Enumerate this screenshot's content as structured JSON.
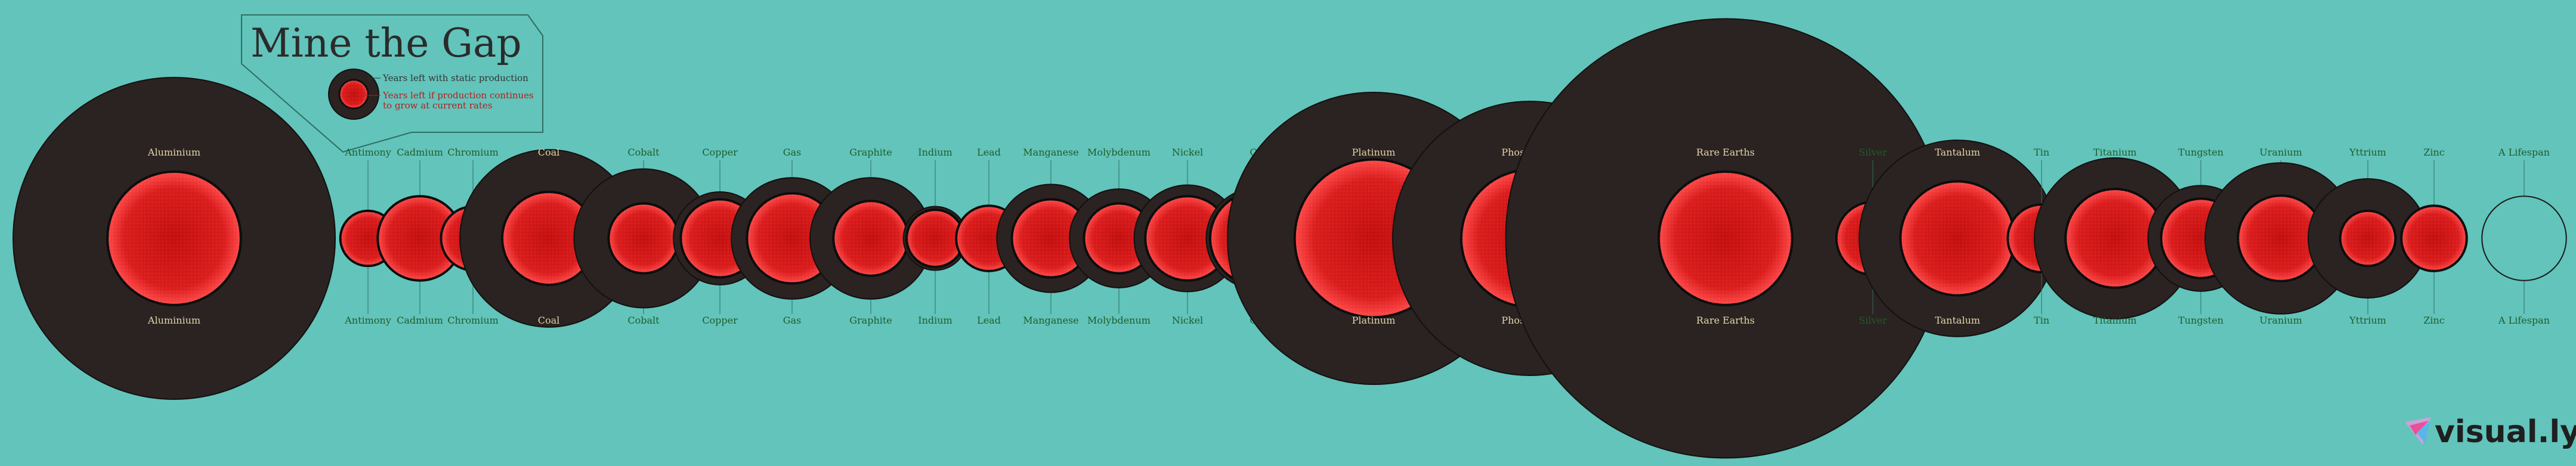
{
  "title": "Mine the Gap",
  "legend": {
    "static_label": "Years left with static production",
    "growth_label_line1": "Years left if production continues",
    "growth_label_line2": "to grow at current rates"
  },
  "brand": "visual.ly",
  "colors": {
    "background": "#62c4bb",
    "static_circle": "#2a2321",
    "growth_circle": "#d41a1a",
    "label": "#1f5d28",
    "label_on_dark": "#e3d5a9"
  },
  "chart_data": {
    "type": "bubble",
    "unit": "years",
    "scale_note": "values estimated from relative circle sizes; A Lifespan reference = 70",
    "items": [
      {
        "name": "Aluminium",
        "static": 1020,
        "growth": 175
      },
      {
        "name": "Antimony",
        "static": 30,
        "growth": 30
      },
      {
        "name": "Cadmium",
        "static": 70,
        "growth": 70
      },
      {
        "name": "Chromium",
        "static": 40,
        "growth": 40
      },
      {
        "name": "Coal",
        "static": 310,
        "growth": 85
      },
      {
        "name": "Cobalt",
        "static": 190,
        "growth": 48
      },
      {
        "name": "Copper",
        "static": 85,
        "growth": 60
      },
      {
        "name": "Gas",
        "static": 145,
        "growth": 80
      },
      {
        "name": "Graphite",
        "static": 145,
        "growth": 55
      },
      {
        "name": "Indium",
        "static": 40,
        "growth": 32
      },
      {
        "name": "Lead",
        "static": 42,
        "growth": 42
      },
      {
        "name": "Manganese",
        "static": 115,
        "growth": 60
      },
      {
        "name": "Molybdenum",
        "static": 96,
        "growth": 48
      },
      {
        "name": "Nickel",
        "static": 112,
        "growth": 70
      },
      {
        "name": "Oil",
        "static": 100,
        "growth": 85
      },
      {
        "name": "Platinum",
        "static": 840,
        "growth": 245
      },
      {
        "name": "Phosphorus",
        "static": 740,
        "growth": 185
      },
      {
        "name": "Rare Earths",
        "static": 1900,
        "growth": 175
      },
      {
        "name": "Silver",
        "static": 52,
        "growth": 52
      },
      {
        "name": "Tantalum",
        "static": 380,
        "growth": 128
      },
      {
        "name": "Tin",
        "static": 45,
        "growth": 45
      },
      {
        "name": "Titanium",
        "static": 255,
        "growth": 96
      },
      {
        "name": "Tungsten",
        "static": 110,
        "growth": 62
      },
      {
        "name": "Uranium",
        "static": 225,
        "growth": 72
      },
      {
        "name": "Yttrium",
        "static": 140,
        "growth": 30
      },
      {
        "name": "Zinc",
        "static": 42,
        "growth": 42
      },
      {
        "name": "A Lifespan",
        "static": 70,
        "growth": 0
      }
    ]
  }
}
